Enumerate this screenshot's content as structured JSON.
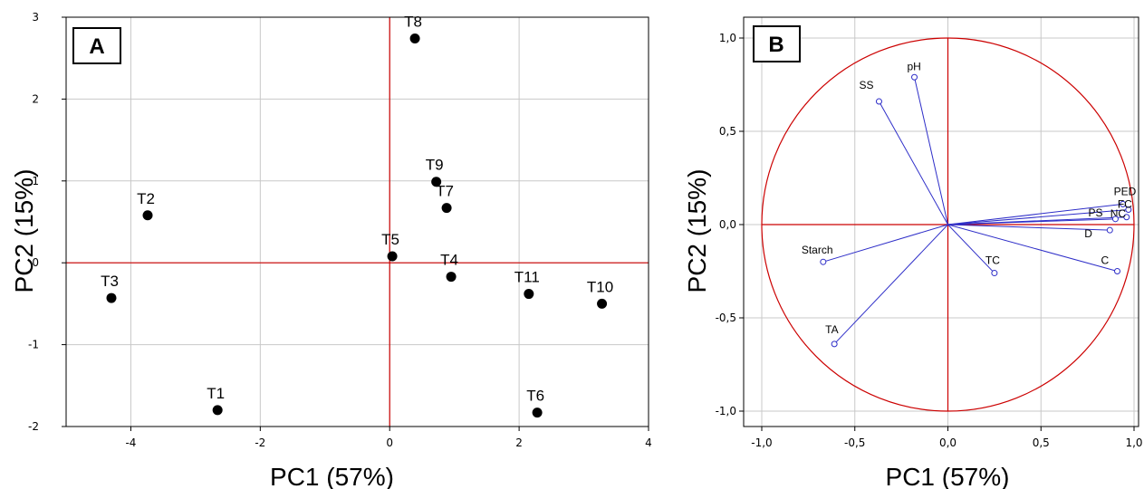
{
  "chart_data": [
    {
      "panel": "A",
      "type": "scatter",
      "xlabel": "PC1 (57%)",
      "ylabel": "PC2 (15%)",
      "xlim": [
        -5,
        4
      ],
      "ylim": [
        -2,
        3
      ],
      "x_ticks": [
        -4,
        -2,
        0,
        2,
        4
      ],
      "y_ticks": [
        -2,
        -1,
        0,
        1,
        2,
        3
      ],
      "x_tick_labels": [
        "-4",
        "-2",
        "0",
        "2",
        "4"
      ],
      "y_tick_labels": [
        "-2",
        "-1",
        "0",
        "1",
        "2",
        "3"
      ],
      "grid": true,
      "points": [
        {
          "label": "T1",
          "x": -2.66,
          "y": -1.8
        },
        {
          "label": "T2",
          "x": -3.74,
          "y": 0.58
        },
        {
          "label": "T3",
          "x": -4.3,
          "y": -0.43
        },
        {
          "label": "T4",
          "x": 0.95,
          "y": -0.17
        },
        {
          "label": "T5",
          "x": 0.04,
          "y": 0.08
        },
        {
          "label": "T6",
          "x": 2.28,
          "y": -1.83
        },
        {
          "label": "T7",
          "x": 0.88,
          "y": 0.67
        },
        {
          "label": "T8",
          "x": 0.39,
          "y": 2.74
        },
        {
          "label": "T9",
          "x": 0.72,
          "y": 0.99
        },
        {
          "label": "T10",
          "x": 3.28,
          "y": -0.5
        },
        {
          "label": "T11",
          "x": 2.15,
          "y": -0.38
        }
      ],
      "colors": {
        "points": "#000000",
        "reference_lines": "#cc0000",
        "grid": "#c8c8c8"
      }
    },
    {
      "panel": "B",
      "type": "scatter",
      "xlabel": "PC1 (57%)",
      "ylabel": "PC2 (15%)",
      "xlim": [
        -1.0,
        1.0
      ],
      "ylim": [
        -1.0,
        1.0
      ],
      "x_ticks": [
        -1.0,
        -0.5,
        0.0,
        0.5,
        1.0
      ],
      "y_ticks": [
        -1.0,
        -0.5,
        0.0,
        0.5,
        1.0
      ],
      "x_tick_labels": [
        "-1,0",
        "-0,5",
        "0,0",
        "0,5",
        "1,0"
      ],
      "y_tick_labels": [
        "-1,0",
        "-0,5",
        "0,0",
        "0,5",
        "1,0"
      ],
      "grid": true,
      "unit_circle": true,
      "loadings": [
        {
          "label": "pH",
          "x": -0.18,
          "y": 0.79
        },
        {
          "label": "SS",
          "x": -0.37,
          "y": 0.66
        },
        {
          "label": "PED",
          "x": 0.94,
          "y": 0.11
        },
        {
          "label": "FC",
          "x": 0.97,
          "y": 0.08
        },
        {
          "label": "NC",
          "x": 0.96,
          "y": 0.04
        },
        {
          "label": "PS",
          "x": 0.9,
          "y": 0.03
        },
        {
          "label": "D",
          "x": 0.87,
          "y": -0.03
        },
        {
          "label": "C",
          "x": 0.91,
          "y": -0.25
        },
        {
          "label": "TC",
          "x": 0.25,
          "y": -0.26
        },
        {
          "label": "Starch",
          "x": -0.67,
          "y": -0.2
        },
        {
          "label": "TA",
          "x": -0.61,
          "y": -0.64
        }
      ],
      "colors": {
        "vectors": "#2e2ec8",
        "circle": "#cc0000",
        "reference_lines": "#cc0000",
        "grid": "#c8c8c8"
      }
    }
  ]
}
